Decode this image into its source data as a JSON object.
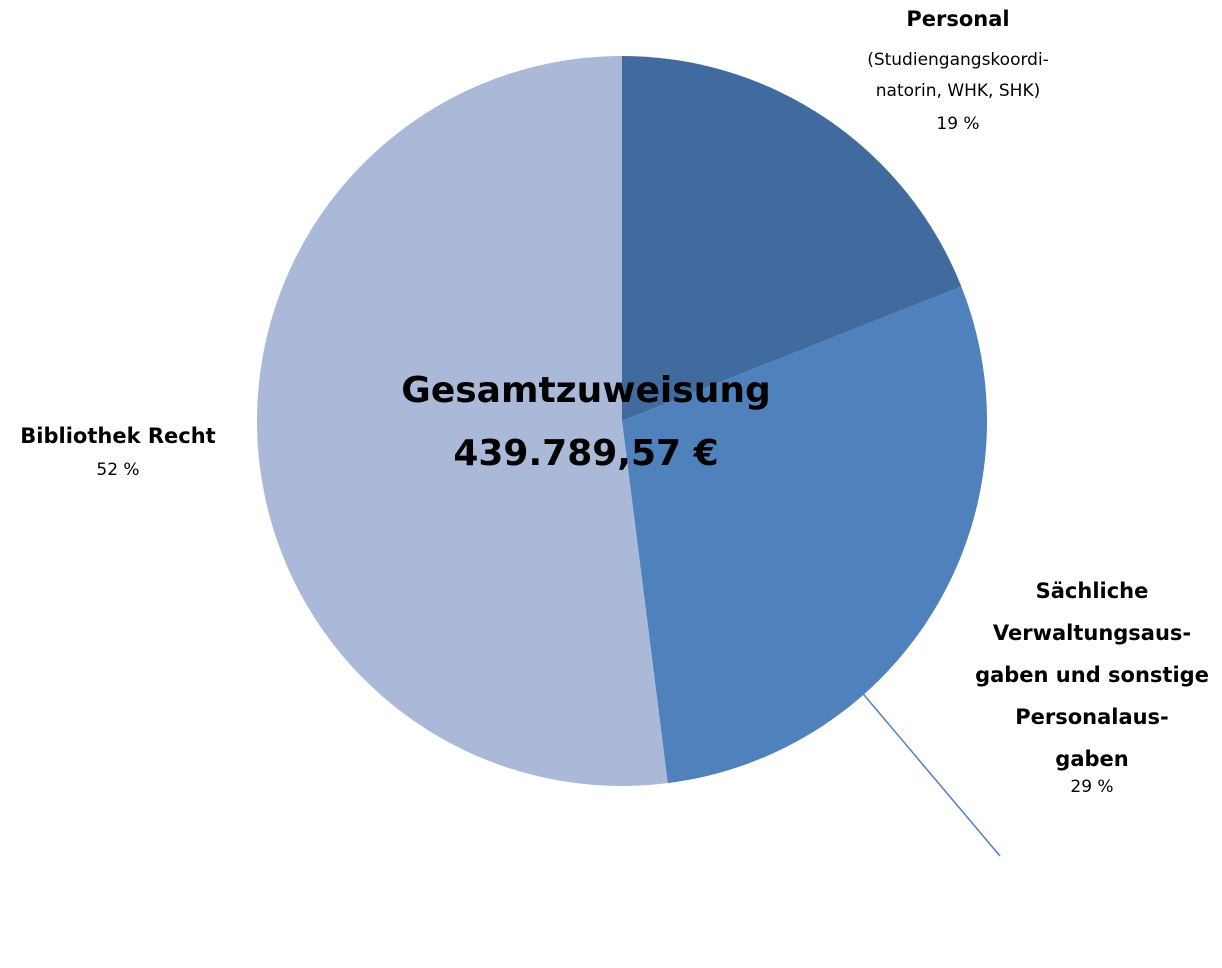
{
  "chart_data": {
    "type": "pie",
    "categories": [
      [
        "Personal"
      ],
      [
        "Sächliche",
        "Verwaltungsaus-",
        "gaben und sonstige",
        "Personalaus-",
        "gaben"
      ],
      [
        "Bibliothek Recht"
      ]
    ],
    "annotations": [
      [
        "(Studiengangskoordi-",
        "natorin, WHK, SHK)"
      ],
      null,
      null
    ],
    "values": [
      19,
      29,
      52
    ],
    "value_labels": [
      "19 %",
      "29 %",
      "52 %"
    ],
    "colors": [
      "#416a9e",
      "#4f81bd",
      "#aab9d7"
    ],
    "center_label": [
      "Gesamtzuweisung",
      "439.789,57 €"
    ]
  }
}
